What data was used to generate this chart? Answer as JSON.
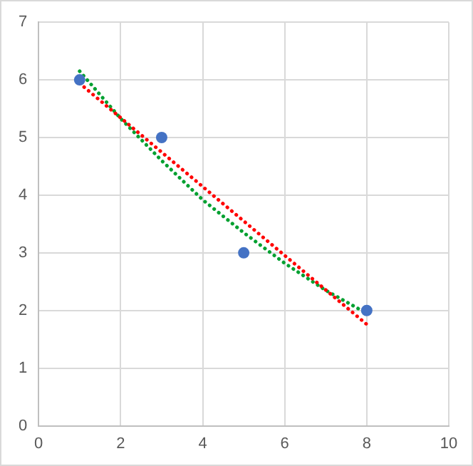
{
  "chart_data": {
    "type": "scatter",
    "xlim": [
      0,
      10
    ],
    "xticks": [
      0,
      2,
      4,
      6,
      8,
      10
    ],
    "ylim": [
      0,
      7
    ],
    "yticks": [
      0,
      1,
      2,
      3,
      4,
      5,
      6,
      7
    ],
    "grid": true,
    "legend": false,
    "marker": "circle",
    "series": [
      {
        "color": "#4472c4",
        "x": [
          1,
          3,
          5,
          8
        ],
        "values": [
          6,
          5,
          3,
          2
        ]
      },
      {
        "type": "line",
        "color": "#ff0000",
        "line_style": "dotted",
        "marker": "none",
        "x": [
          1,
          8
        ],
        "values": [
          5.94,
          1.76
        ]
      },
      {
        "type": "line",
        "color": "#00a030",
        "line_style": "dotted",
        "marker": "none",
        "x": [
          1,
          2,
          3,
          4,
          5,
          6,
          7,
          8
        ],
        "values": [
          6.15,
          5.33,
          4.6,
          3.92,
          3.35,
          2.82,
          2.35,
          1.95
        ]
      }
    ]
  }
}
